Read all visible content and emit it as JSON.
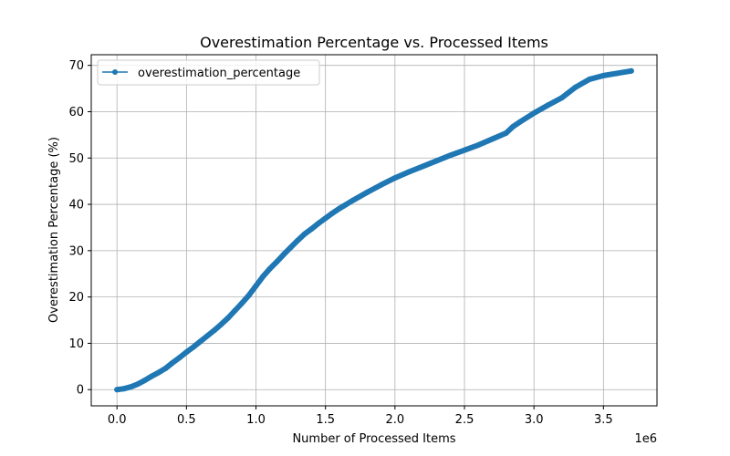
{
  "chart_data": {
    "type": "line",
    "title": "Overestimation Percentage vs. Processed Items",
    "xlabel": "Number of Processed Items",
    "ylabel": "Overestimation Percentage (%)",
    "x_offset_label": "1e6",
    "xlim": [
      -0.185,
      3.885
    ],
    "ylim": [
      -3.5,
      72.3
    ],
    "x_ticks": [
      0.0,
      0.5,
      1.0,
      1.5,
      2.0,
      2.5,
      3.0,
      3.5
    ],
    "x_tick_labels": [
      "0.0",
      "0.5",
      "1.0",
      "1.5",
      "2.0",
      "2.5",
      "3.0",
      "3.5"
    ],
    "y_ticks": [
      0,
      10,
      20,
      30,
      40,
      50,
      60,
      70
    ],
    "y_tick_labels": [
      "0",
      "10",
      "20",
      "30",
      "40",
      "50",
      "60",
      "70"
    ],
    "grid": true,
    "legend_position": "upper-left",
    "series": [
      {
        "name": "overestimation_percentage",
        "color": "#1f77b4",
        "marker": "point",
        "x": [
          0.0,
          0.05,
          0.1,
          0.15,
          0.2,
          0.25,
          0.3,
          0.35,
          0.4,
          0.45,
          0.5,
          0.55,
          0.6,
          0.65,
          0.7,
          0.75,
          0.8,
          0.85,
          0.9,
          0.95,
          1.0,
          1.05,
          1.1,
          1.15,
          1.2,
          1.25,
          1.3,
          1.35,
          1.4,
          1.45,
          1.5,
          1.55,
          1.6,
          1.7,
          1.8,
          1.9,
          2.0,
          2.1,
          2.2,
          2.3,
          2.4,
          2.5,
          2.6,
          2.7,
          2.8,
          2.85,
          2.9,
          3.0,
          3.1,
          3.2,
          3.3,
          3.4,
          3.5,
          3.6,
          3.7
        ],
        "y": [
          0.0,
          0.2,
          0.6,
          1.2,
          2.0,
          2.9,
          3.7,
          4.6,
          5.8,
          6.9,
          8.1,
          9.2,
          10.4,
          11.6,
          12.8,
          14.1,
          15.5,
          17.1,
          18.7,
          20.4,
          22.4,
          24.4,
          26.1,
          27.6,
          29.2,
          30.7,
          32.2,
          33.6,
          34.7,
          35.9,
          37.0,
          38.1,
          39.1,
          40.9,
          42.6,
          44.2,
          45.7,
          47.0,
          48.2,
          49.4,
          50.6,
          51.7,
          52.8,
          54.1,
          55.4,
          56.8,
          57.8,
          59.7,
          61.4,
          63.0,
          65.3,
          67.0,
          67.8,
          68.3,
          68.8
        ]
      }
    ]
  }
}
